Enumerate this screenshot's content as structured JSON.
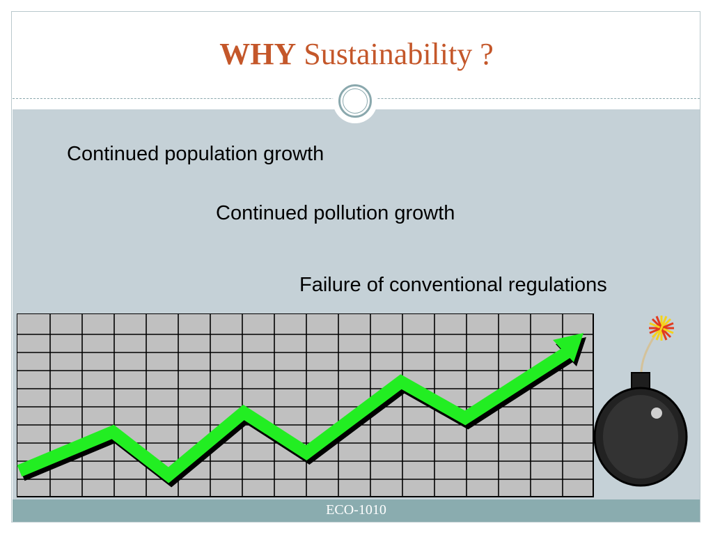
{
  "title": {
    "bold": "WHY",
    "rest": "Sustainability ?"
  },
  "bullets": [
    "Continued population growth",
    "Continued pollution growth",
    "Failure of conventional regulations"
  ],
  "graphic": {
    "icon": "rising-arrow-graph",
    "arrow_color": "#22ee22",
    "grid_fill": "#c0c0c0"
  },
  "bomb": {
    "icon": "bomb-icon"
  },
  "footer": {
    "course": "ECO-1010"
  },
  "colors": {
    "title": "#c4572a",
    "content_bg": "#c5d1d7",
    "footer_bg": "#8aacaf"
  }
}
